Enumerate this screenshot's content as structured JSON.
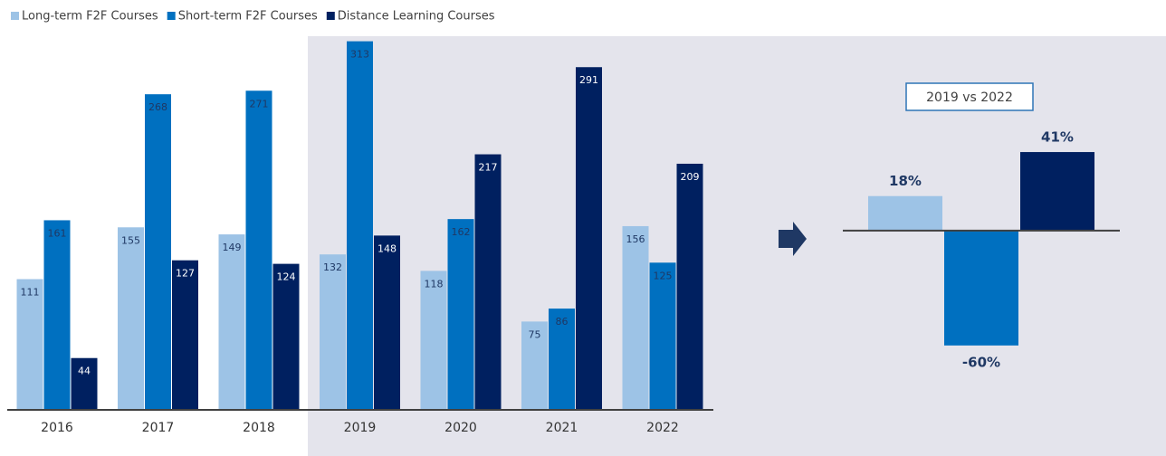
{
  "chart_data": [
    {
      "type": "bar",
      "categories": [
        "2016",
        "2017",
        "2018",
        "2019",
        "2020",
        "2021",
        "2022"
      ],
      "series": [
        {
          "name": "Long-term F2F Courses",
          "color": "#9dc3e6",
          "values": [
            111,
            155,
            149,
            132,
            118,
            75,
            156
          ]
        },
        {
          "name": "Short-term F2F Courses",
          "color": "#0070c0",
          "values": [
            161,
            268,
            271,
            313,
            162,
            86,
            125
          ]
        },
        {
          "name": "Distance Learning Courses",
          "color": "#002060",
          "values": [
            44,
            127,
            124,
            148,
            217,
            291,
            209
          ]
        }
      ],
      "ylim": [
        0,
        315
      ]
    },
    {
      "type": "bar",
      "title": "2019 vs 2022",
      "values": [
        18,
        -60,
        41
      ],
      "value_labels": [
        "18%",
        "-60%",
        "41%"
      ],
      "colors": [
        "#9dc3e6",
        "#0070c0",
        "#002060"
      ],
      "ylim": [
        -70,
        50
      ]
    }
  ]
}
